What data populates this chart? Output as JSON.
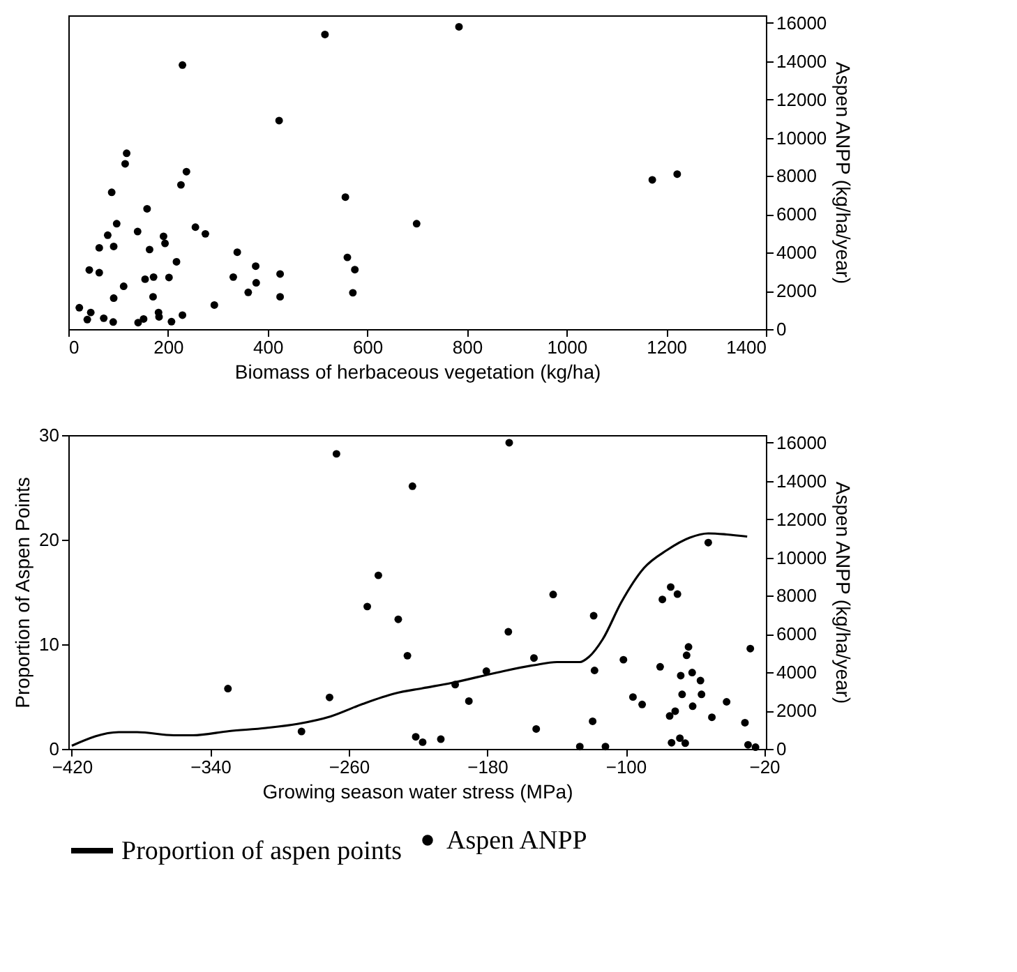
{
  "chart_data": [
    {
      "type": "scatter",
      "xlabel": "Biomass of herbaceous vegetation (kg/ha)",
      "y2label": "Aspen ANPP (kg/ha/year)",
      "marker": "circle",
      "xlim": [
        0,
        1400
      ],
      "xticks": [
        0,
        200,
        400,
        600,
        800,
        1000,
        1200,
        1400
      ],
      "y2lim": [
        0,
        16400
      ],
      "y2ticks": [
        0,
        2000,
        4000,
        6000,
        8000,
        10000,
        12000,
        14000,
        16000
      ],
      "x": [
        784,
        515,
        229,
        423,
        117,
        114,
        237,
        87,
        226,
        556,
        158,
        699,
        97,
        255,
        275,
        139,
        79,
        191,
        194,
        62,
        91,
        163,
        339,
        217,
        560,
        376,
        575,
        42,
        62,
        425,
        171,
        154,
        202,
        331,
        377,
        111,
        361,
        571,
        170,
        425,
        91,
        293,
        22,
        45,
        38,
        71,
        181,
        182,
        229,
        90,
        140,
        151,
        207,
        1172,
        1222
      ],
      "series": [
        {
          "color": "#000000",
          "axis": "y2",
          "values": [
            15800,
            15400,
            13800,
            10900,
            9190,
            8640,
            8230,
            7150,
            7540,
            6900,
            6290,
            5510,
            5510,
            5330,
            4980,
            5100,
            4910,
            4850,
            4480,
            4250,
            4320,
            4160,
            4020,
            3520,
            3750,
            3290,
            3110,
            3090,
            2950,
            2880,
            2720,
            2610,
            2700,
            2720,
            2420,
            2240,
            1920,
            1900,
            1690,
            1690,
            1620,
            1260,
            1120,
            870,
            500,
            570,
            870,
            640,
            730,
            370,
            340,
            530,
            390,
            7800,
            8100
          ]
        }
      ]
    },
    {
      "type": "scatter",
      "ylabel": "Proportion of Aspen Points",
      "y2label": "Aspen ANPP (kg/ha/year)",
      "xlabel": "Growing season water stress (MPa)",
      "legend": "bottom",
      "xlim": [
        -422,
        -19
      ],
      "xticks": [
        -420,
        -340,
        -260,
        -180,
        -100,
        -20
      ],
      "ylim": [
        0,
        30
      ],
      "yticks": [
        0,
        10,
        20,
        30
      ],
      "y2lim": [
        0,
        16400
      ],
      "y2ticks": [
        0,
        2000,
        4000,
        6000,
        8000,
        10000,
        12000,
        14000,
        16000
      ],
      "series": [
        {
          "type": "line",
          "name": "Proportion of aspen points",
          "color": "#000000",
          "line_style": "solid",
          "axis": "y",
          "x": [
            -420,
            -392.9,
            -382.2,
            -361,
            -350.3,
            -329,
            -307.8,
            -289.1,
            -270.5,
            -251.9,
            -233.3,
            -217.3,
            -200.7,
            -174.2,
            -153,
            -139.7,
            -126.5,
            -121.2,
            -113.2,
            -102.6,
            -89.4,
            -76.2,
            -62.9,
            -52.3,
            -41.7,
            -29.8
          ],
          "values": [
            0.3,
            1.6,
            1.6,
            1.3,
            1.3,
            1.7,
            2.0,
            2.4,
            3.1,
            4.3,
            5.3,
            5.8,
            6.3,
            7.3,
            8.0,
            8.3,
            8.3,
            8.8,
            10.5,
            14.0,
            17.3,
            19.0,
            20.2,
            20.6,
            20.5,
            20.3
          ]
        },
        {
          "name": "Aspen ANPP",
          "color": "#000000",
          "marker": "circle",
          "axis": "y2",
          "x": [
            -267.1,
            -223.2,
            -242.9,
            -249.3,
            -231.4,
            -226.1,
            -329.8,
            -271.1,
            -287.3,
            -221.3,
            -217.3,
            -206.8,
            -167.3,
            -52.3,
            -74.0,
            -78.8,
            -70.1,
            -141.9,
            -118.5,
            -167.8,
            -153,
            -28,
            -63.7,
            -64.8,
            -101.3,
            -180.5,
            -118,
            -80.1,
            -61.6,
            -68.2,
            -56.8,
            -198.5,
            -95.8,
            -67.4,
            -56.2,
            -190.6,
            -90.5,
            -41.7,
            -61.3,
            -71.4,
            -74.6,
            -50.2,
            -119.1,
            -31.1,
            -151.7,
            -126.5,
            -111.7,
            -73.5,
            -68.7,
            -65.6,
            -29.3,
            -25.0
          ],
          "values": [
            15420,
            13730,
            9070,
            7440,
            6770,
            4870,
            3150,
            2690,
            910,
            630,
            350,
            510,
            16000,
            10780,
            8460,
            7810,
            8090,
            8070,
            6960,
            6120,
            4750,
            5240,
            5330,
            4890,
            4660,
            4060,
            4100,
            4290,
            3990,
            3830,
            3570,
            3360,
            2710,
            2850,
            2850,
            2500,
            2320,
            2460,
            2230,
            1970,
            1720,
            1650,
            1440,
            1370,
            1040,
            120,
            120,
            320,
            560,
            300,
            210,
            90
          ]
        }
      ]
    }
  ]
}
